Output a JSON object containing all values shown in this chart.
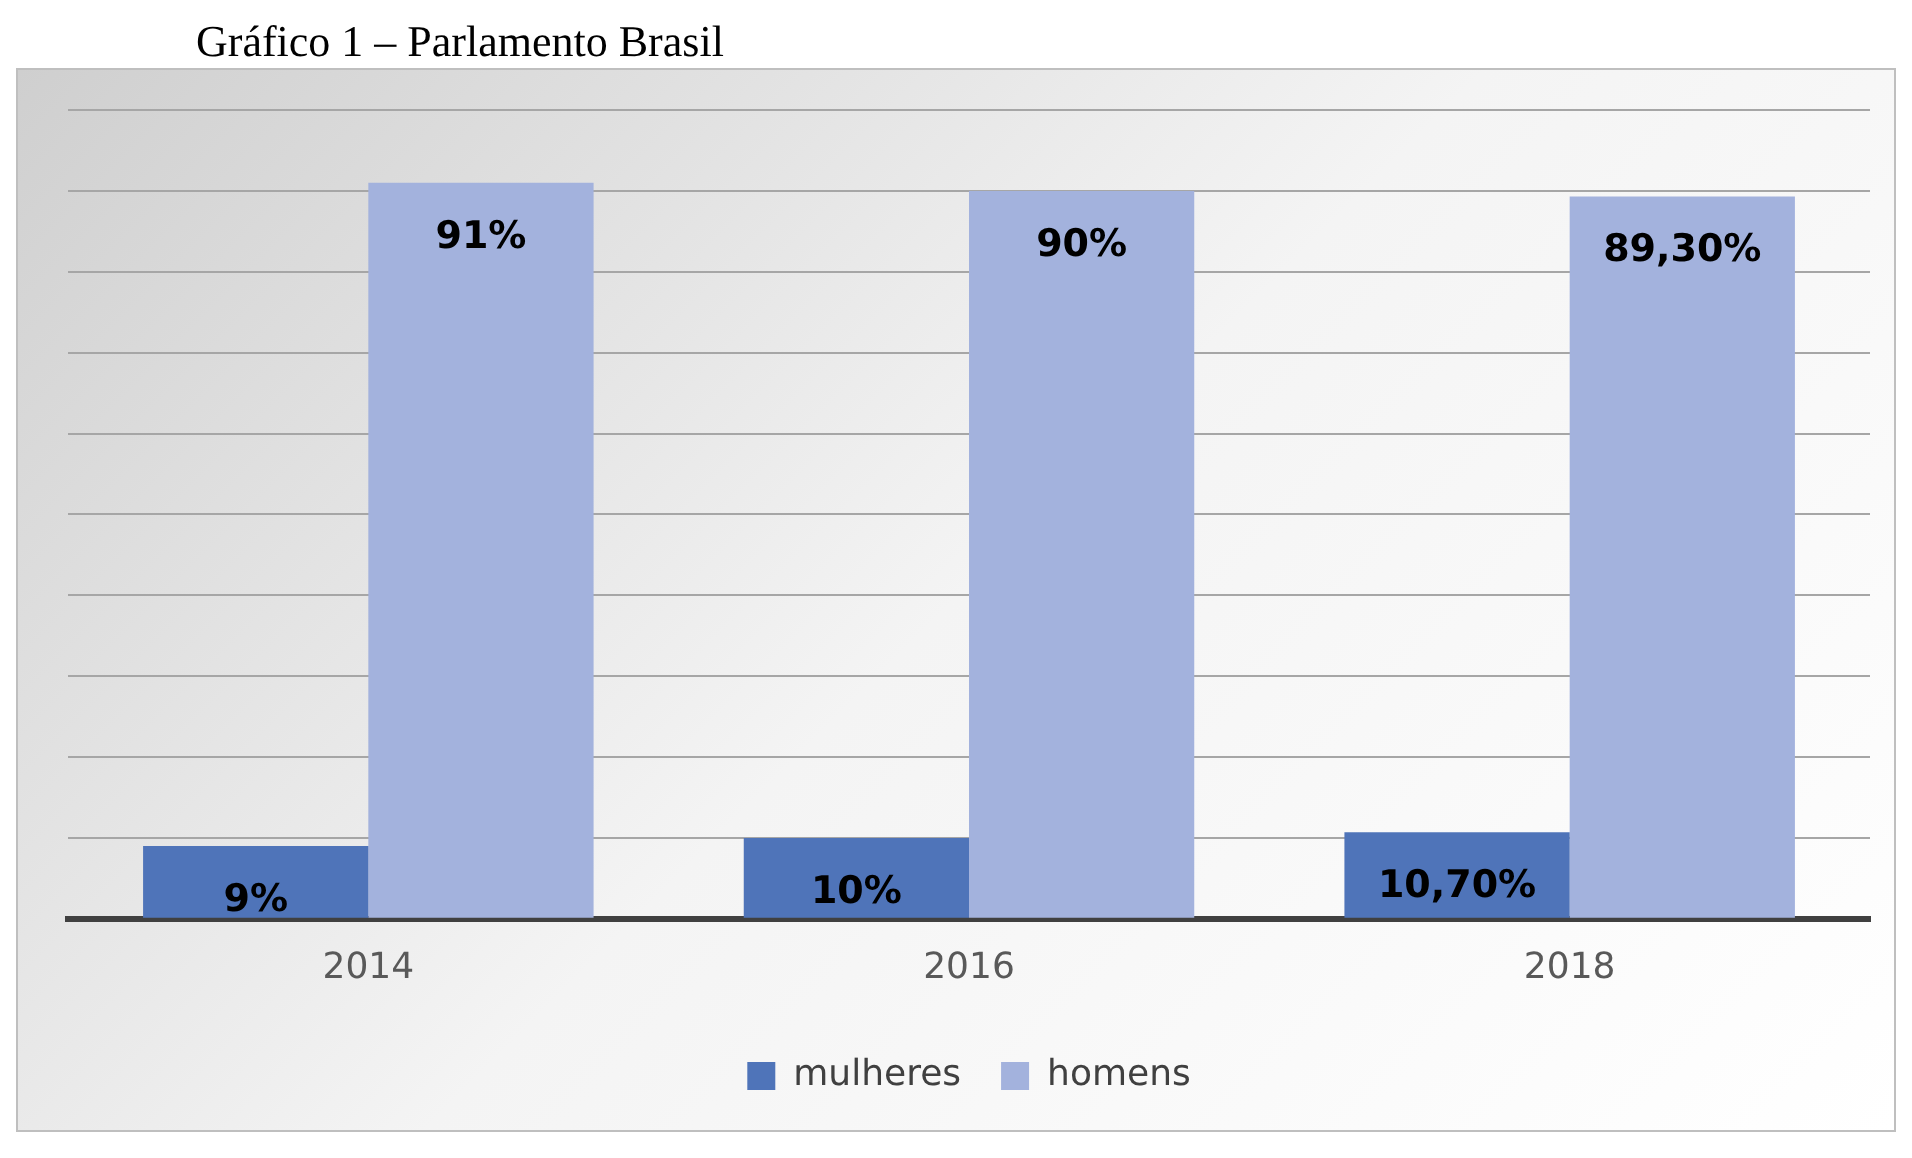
{
  "chart_data": {
    "type": "bar",
    "title": "Gráfico 1 – Parlamento Brasil",
    "categories": [
      "2014",
      "2016",
      "2018"
    ],
    "series": [
      {
        "name": "mulheres",
        "color": "#4f74b9",
        "values": [
          9,
          10,
          10.7
        ],
        "value_labels": [
          "9%",
          "10%",
          "10,70%"
        ]
      },
      {
        "name": "homens",
        "color": "#a3b2dd",
        "values": [
          91,
          90,
          89.3
        ],
        "value_labels": [
          "91%",
          "90%",
          "89,30%"
        ]
      }
    ],
    "ylim": [
      0,
      100
    ],
    "yticks": [
      {
        "value": 0,
        "label": null
      },
      {
        "value": 10,
        "label": null
      },
      {
        "value": 20,
        "label": null
      },
      {
        "value": 30,
        "label": null
      },
      {
        "value": 40,
        "label": null
      },
      {
        "value": 50,
        "label": null
      },
      {
        "value": 60,
        "label": null
      },
      {
        "value": 70,
        "label": null
      },
      {
        "value": 80,
        "label": null
      },
      {
        "value": 90,
        "label": null
      },
      {
        "value": 100,
        "label": null
      }
    ],
    "grid": "y",
    "tick_labels": "x",
    "legend": "bottom"
  }
}
